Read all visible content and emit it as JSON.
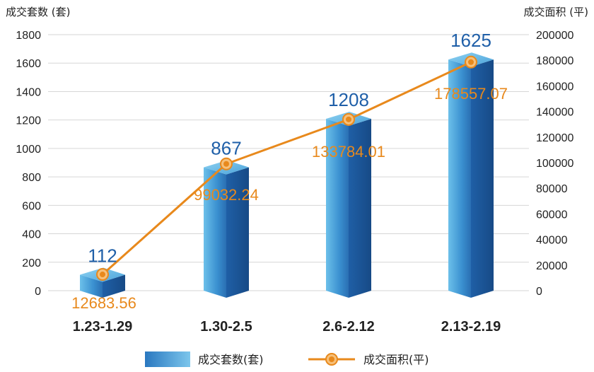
{
  "chart_data": {
    "type": "bar",
    "categories": [
      "1.23-1.29",
      "1.30-2.5",
      "2.6-2.12",
      "2.13-2.19"
    ],
    "ylabel_left": "成交套数 (套)",
    "ylabel_right": "成交面积 (平)",
    "ylim_left": [
      0,
      1800
    ],
    "ylim_right": [
      0,
      200000
    ],
    "yticks_left": [
      0,
      200,
      400,
      600,
      800,
      1000,
      1200,
      1400,
      1600,
      1800
    ],
    "yticks_right": [
      0,
      20000,
      40000,
      60000,
      80000,
      100000,
      120000,
      140000,
      160000,
      180000,
      200000
    ],
    "grid": true,
    "legend_position": "bottom",
    "series": [
      {
        "name": "成交套数(套)",
        "type": "bar",
        "axis": "left",
        "values": [
          112,
          867,
          1208,
          1625
        ],
        "labels": [
          "112",
          "867",
          "1208",
          "1625"
        ],
        "color": "#2a78c0"
      },
      {
        "name": "成交面积(平)",
        "type": "line",
        "axis": "right",
        "values": [
          12683.56,
          99032.24,
          133784.01,
          178557.07
        ],
        "labels": [
          "12683.56",
          "99032.24",
          "133784.01",
          "178557.07"
        ],
        "color": "#e8891c"
      }
    ]
  }
}
